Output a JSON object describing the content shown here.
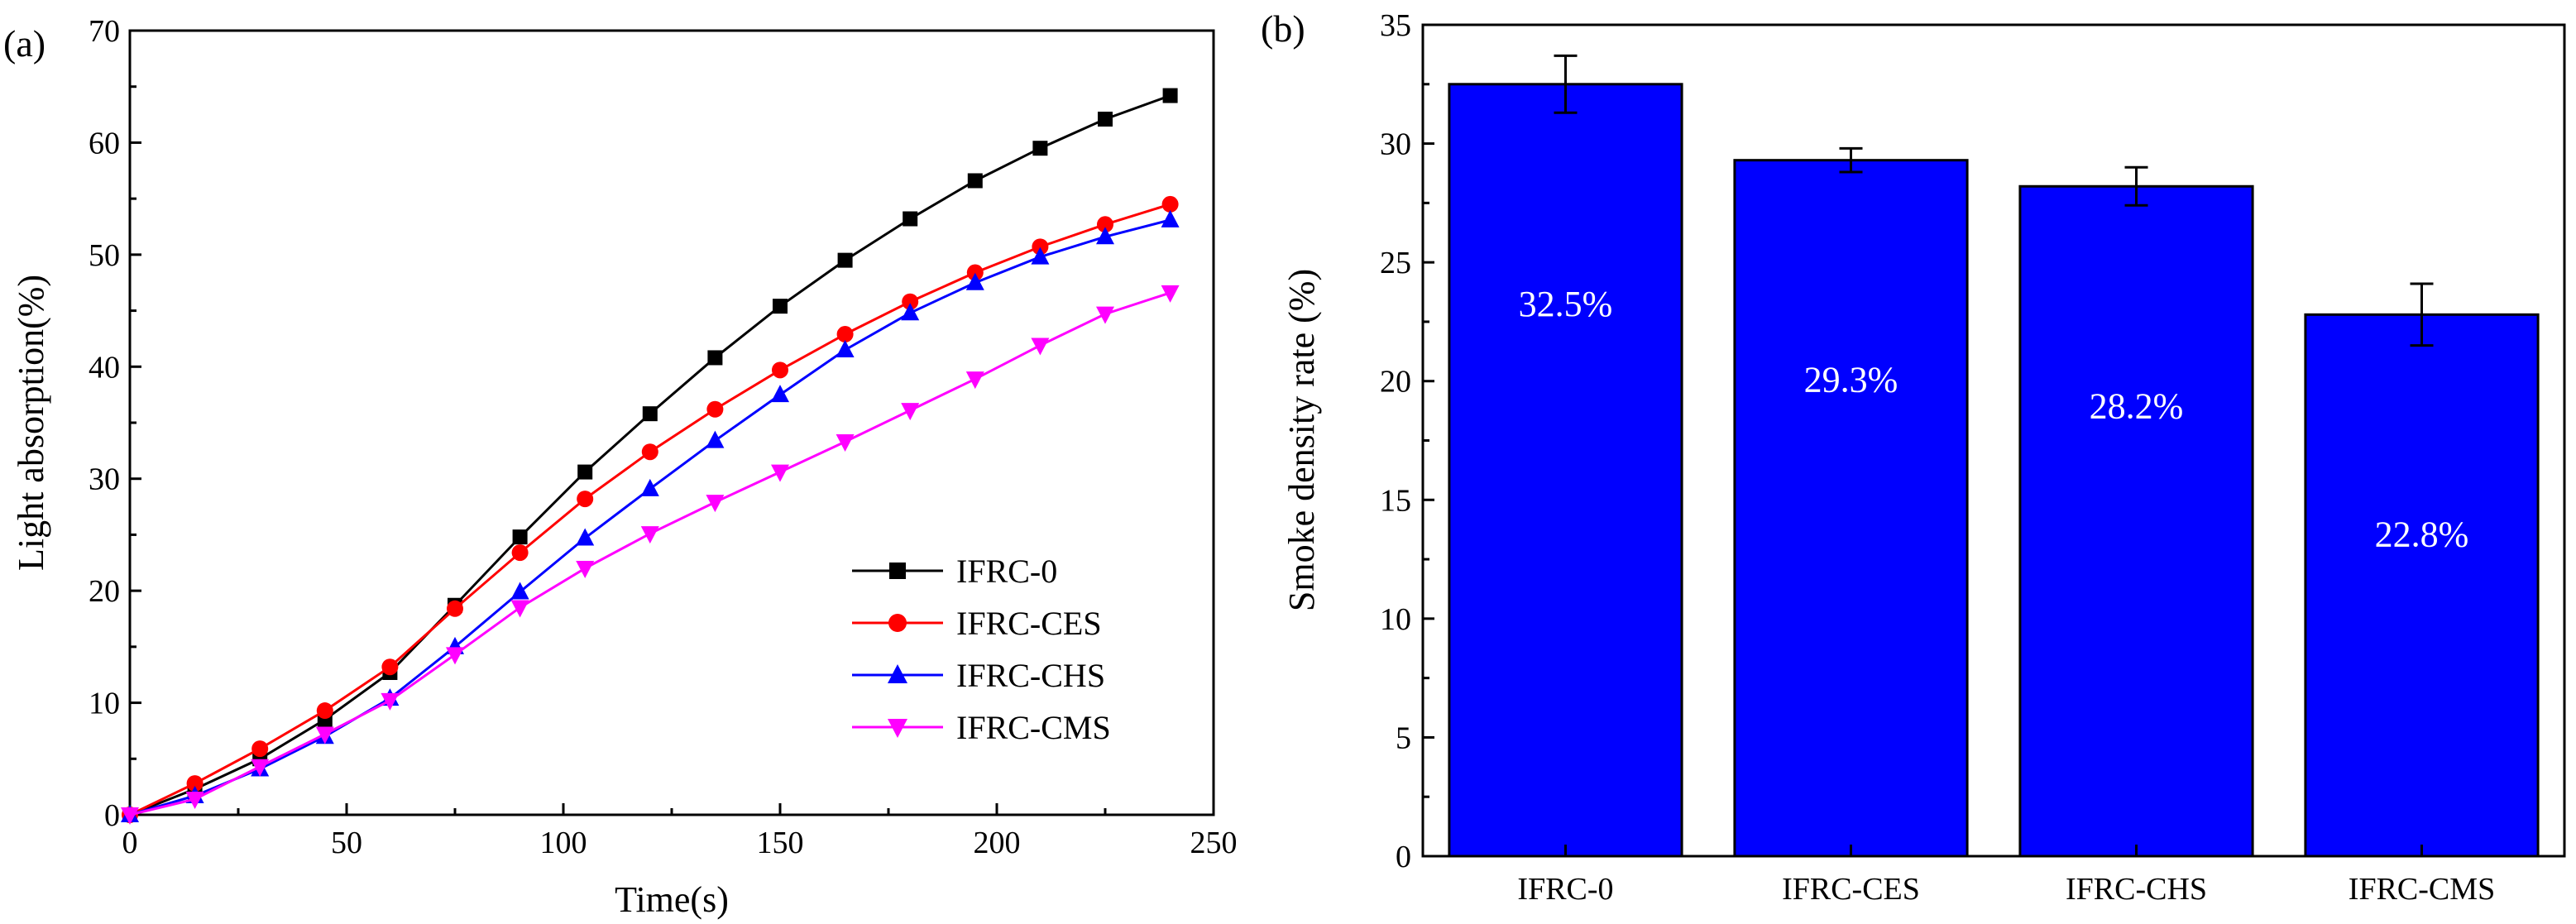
{
  "chart_data": [
    {
      "panel_label": "(a)",
      "type": "line",
      "xlabel": "Time(s)",
      "ylabel": "Light absorption(%)",
      "xlim": [
        0,
        250
      ],
      "ylim": [
        0,
        70
      ],
      "xticks": [
        0,
        50,
        100,
        150,
        200,
        250
      ],
      "yticks": [
        0,
        10,
        20,
        30,
        40,
        50,
        60,
        70
      ],
      "grid": false,
      "legend_position": "bottom-right",
      "x": [
        0,
        15,
        30,
        45,
        60,
        75,
        90,
        105,
        120,
        135,
        150,
        165,
        180,
        195,
        210,
        225,
        240
      ],
      "series": [
        {
          "name": "IFRC-0",
          "color": "#000000",
          "marker": "square",
          "values": [
            0,
            2.3,
            5.0,
            8.5,
            12.7,
            18.7,
            24.8,
            30.6,
            35.8,
            40.8,
            45.4,
            49.5,
            53.2,
            56.6,
            59.5,
            62.1,
            64.2
          ]
        },
        {
          "name": "IFRC-CES",
          "color": "#ff0000",
          "marker": "circle",
          "values": [
            0,
            2.8,
            5.9,
            9.3,
            13.2,
            18.4,
            23.4,
            28.2,
            32.4,
            36.2,
            39.7,
            42.9,
            45.8,
            48.4,
            50.7,
            52.7,
            54.5
          ]
        },
        {
          "name": "IFRC-CHS",
          "color": "#0000ff",
          "marker": "triangle-up",
          "values": [
            0,
            1.7,
            4.1,
            7.0,
            10.4,
            15.0,
            19.9,
            24.7,
            29.1,
            33.4,
            37.5,
            41.5,
            44.8,
            47.5,
            49.8,
            51.6,
            53.1
          ]
        },
        {
          "name": "IFRC-CMS",
          "color": "#ff00ff",
          "marker": "triangle-down",
          "values": [
            0,
            1.4,
            4.3,
            7.2,
            10.2,
            14.3,
            18.5,
            22.0,
            25.1,
            27.9,
            30.6,
            33.3,
            36.1,
            38.9,
            41.9,
            44.7,
            46.6
          ]
        }
      ]
    },
    {
      "panel_label": "(b)",
      "type": "bar",
      "xlabel": "",
      "ylabel": "Smoke density rate (%)",
      "ylim": [
        0,
        35
      ],
      "yticks": [
        0,
        5,
        10,
        15,
        20,
        25,
        30,
        35
      ],
      "grid": false,
      "bar_color": "#0000ff",
      "categories": [
        "IFRC-0",
        "IFRC-CES",
        "IFRC-CHS",
        "IFRC-CMS"
      ],
      "values": [
        32.5,
        29.3,
        28.2,
        22.8
      ],
      "errors": [
        1.2,
        0.5,
        0.8,
        1.3
      ],
      "labels": [
        "32.5%",
        "29.3%",
        "28.2%",
        "22.8%"
      ]
    }
  ]
}
